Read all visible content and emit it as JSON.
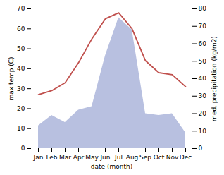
{
  "chart_data": {
    "type": "line",
    "categories": [
      "Jan",
      "Feb",
      "Mar",
      "Apr",
      "May",
      "Jun",
      "Jul",
      "Aug",
      "Sep",
      "Oct",
      "Nov",
      "Dec"
    ],
    "series": [
      {
        "type": "area",
        "axis": "y2",
        "color": "#b8c0e0",
        "values": [
          13,
          19,
          15,
          22,
          24,
          53,
          75,
          68,
          20,
          19,
          20,
          9
        ]
      },
      {
        "type": "line",
        "color": "#c0504d",
        "values": [
          27,
          29,
          33,
          43,
          55,
          65,
          68,
          60,
          44,
          38,
          37,
          31
        ]
      }
    ],
    "xlabel": "date (month)",
    "ylabel": "max temp (C)",
    "y2label": "med. precipitation (kg/m2)",
    "ylim": [
      0,
      70
    ],
    "yticks": [
      0,
      10,
      20,
      30,
      40,
      50,
      60,
      70
    ],
    "y2lim": [
      0,
      80
    ],
    "y2ticks": [
      0,
      10,
      20,
      30,
      40,
      50,
      60,
      70,
      80
    ],
    "grid": false
  }
}
